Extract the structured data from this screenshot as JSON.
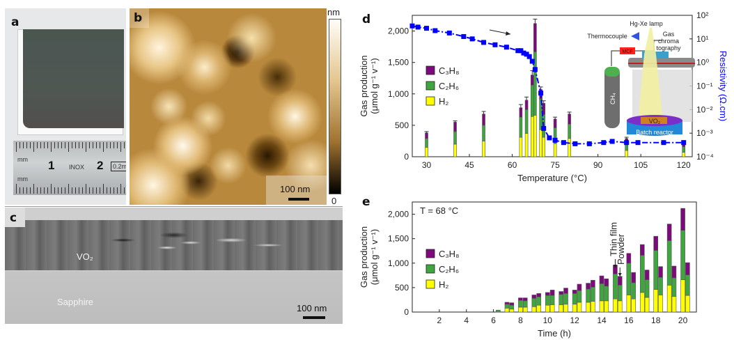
{
  "panels": {
    "a": {
      "label": "a",
      "ruler_marks": [
        "mm",
        "1",
        "INOX",
        "2",
        "0.2m",
        "mm"
      ]
    },
    "b": {
      "label": "b",
      "scalebar": "100 nm",
      "colorbar_unit": "nm",
      "colorbar_min": "0"
    },
    "c": {
      "label": "c",
      "layer_top": "VO₂",
      "layer_bottom": "Sapphire",
      "scalebar": "100 nm"
    },
    "d": {
      "label": "d"
    },
    "e": {
      "label": "e"
    }
  },
  "colors": {
    "C3H8": "#7b0a7b",
    "C2H6": "#3fa53f",
    "H2": "#ffff00",
    "resistivity": "#0000ff"
  },
  "chart_data": [
    {
      "id": "d",
      "type": "bar",
      "stacked": true,
      "xlabel": "Temperature (°C)",
      "ylabel": "Gas production (μmol g⁻¹ v⁻¹)",
      "y2label": "Resistivity (Ω.cm)",
      "xlim": [
        25,
        123
      ],
      "ylim": [
        0,
        2250
      ],
      "xticks": [
        30,
        45,
        60,
        75,
        90,
        105,
        120
      ],
      "yticks": [
        0,
        500,
        1000,
        1500,
        2000
      ],
      "ytick_labels": [
        "0",
        "500",
        "1,000",
        "1,500",
        "2,000"
      ],
      "y2ticks_exp": [
        -4,
        -3,
        -2,
        -1,
        0,
        1,
        2
      ],
      "y2ticks": [
        "10⁻⁴",
        "10⁻³",
        "10⁻²",
        "10⁻¹",
        "10⁰",
        "10¹",
        "10²"
      ],
      "legend": [
        {
          "name": "C₃H₈",
          "key": "C3H8"
        },
        {
          "name": "C₂H₆",
          "key": "C2H6"
        },
        {
          "name": "H₂",
          "key": "H2"
        }
      ],
      "legend_position": "left",
      "x": [
        30,
        40,
        50,
        63,
        65,
        67,
        68,
        70,
        71,
        75,
        80,
        100,
        120
      ],
      "series": [
        {
          "name": "H2",
          "values": [
            150,
            200,
            250,
            310,
            370,
            640,
            660,
            430,
            310,
            210,
            290,
            100,
            70
          ]
        },
        {
          "name": "C2H6",
          "values": [
            140,
            200,
            250,
            320,
            380,
            500,
            1010,
            490,
            360,
            250,
            230,
            120,
            90
          ]
        },
        {
          "name": "C3H8",
          "values": [
            90,
            150,
            180,
            150,
            150,
            160,
            450,
            150,
            180,
            140,
            160,
            70,
            30
          ]
        }
      ],
      "error": [
        20,
        20,
        40,
        50,
        50,
        70,
        70,
        40,
        40,
        30,
        30,
        20,
        20
      ],
      "resistivity_series": {
        "name": "Resistivity",
        "x": [
          25,
          27,
          30,
          33,
          38,
          43,
          46,
          50,
          54,
          58,
          62,
          63,
          64,
          65,
          66,
          67,
          68,
          70,
          71,
          73,
          75,
          78,
          82,
          87,
          92,
          95,
          100,
          104,
          113,
          120
        ],
        "log10_values": [
          1.55,
          1.5,
          1.45,
          1.35,
          1.25,
          1.1,
          1.0,
          0.85,
          0.75,
          0.65,
          0.5,
          0.5,
          0.4,
          0.35,
          0.25,
          0.05,
          -0.3,
          -1.3,
          -2.8,
          -3.2,
          -3.3,
          -3.4,
          -3.45,
          -3.45,
          -3.4,
          -3.35,
          -3.4,
          -3.4,
          -3.4,
          -3.4
        ]
      },
      "annotations": {
        "arrow": "→",
        "inset_labels": [
          "Hg-Xe lamp",
          "Thermocouple",
          "Gas chroma tography",
          "MCF",
          "CH₄",
          "VO₂",
          "Batch reactor"
        ]
      }
    },
    {
      "id": "e",
      "type": "bar",
      "stacked": true,
      "xlabel": "Time (h)",
      "ylabel": "Gas production (μmol g⁻¹ v⁻¹)",
      "annotation": "T = 68 °C",
      "xlim": [
        0,
        21
      ],
      "ylim": [
        0,
        2250
      ],
      "xticks": [
        2,
        4,
        6,
        8,
        10,
        12,
        14,
        16,
        18,
        20
      ],
      "yticks": [
        0,
        500,
        1000,
        1500,
        2000
      ],
      "ytick_labels": [
        "0",
        "500",
        "1,000",
        "1,500",
        "2,000"
      ],
      "legend": [
        {
          "name": "C₃H₈",
          "key": "C3H8"
        },
        {
          "name": "C₂H₆",
          "key": "C2H6"
        },
        {
          "name": "H₂",
          "key": "H2"
        }
      ],
      "legend_position": "left",
      "markers": [
        {
          "label": "Thin film",
          "x": 15
        },
        {
          "label": "Powder",
          "x": 15.35
        }
      ],
      "x": [
        6.35,
        7,
        7.35,
        8,
        8.35,
        9,
        9.35,
        10,
        10.35,
        11,
        11.35,
        12,
        12.35,
        13,
        13.35,
        14,
        14.35,
        15,
        15.35,
        16,
        16.35,
        17,
        17.35,
        18,
        18.35,
        19,
        19.35,
        20,
        20.35
      ],
      "group": [
        "thin",
        "thin",
        "powder",
        "thin",
        "powder",
        "thin",
        "powder",
        "thin",
        "powder",
        "thin",
        "powder",
        "thin",
        "powder",
        "thin",
        "powder",
        "thin",
        "powder",
        "thin",
        "powder",
        "thin",
        "powder",
        "thin",
        "powder",
        "thin",
        "powder",
        "thin",
        "powder",
        "thin",
        "powder"
      ],
      "series": [
        {
          "name": "H2",
          "values": [
            0,
            80,
            60,
            100,
            100,
            110,
            140,
            140,
            150,
            150,
            160,
            160,
            200,
            200,
            220,
            230,
            230,
            270,
            230,
            350,
            270,
            400,
            300,
            460,
            350,
            550,
            320,
            660,
            340
          ]
        },
        {
          "name": "C2H6",
          "values": [
            40,
            80,
            80,
            140,
            130,
            170,
            170,
            200,
            190,
            210,
            220,
            220,
            240,
            270,
            290,
            350,
            300,
            510,
            320,
            650,
            330,
            760,
            360,
            800,
            360,
            910,
            380,
            1010,
            420
          ]
        },
        {
          "name": "C3H8",
          "values": [
            0,
            40,
            50,
            50,
            60,
            70,
            70,
            60,
            110,
            60,
            110,
            70,
            130,
            120,
            140,
            160,
            150,
            180,
            180,
            200,
            210,
            220,
            200,
            290,
            220,
            340,
            240,
            450,
            250
          ]
        }
      ]
    }
  ]
}
